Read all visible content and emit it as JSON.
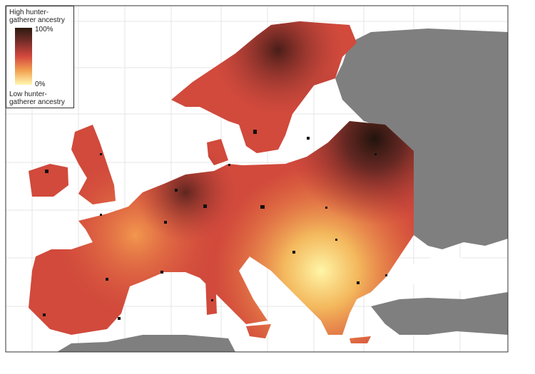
{
  "legend": {
    "title": "High hunter-gatherer ancestry",
    "max_label": "100%",
    "min_label": "0%",
    "footer": "Low hunter-gatherer ancestry"
  }
}
